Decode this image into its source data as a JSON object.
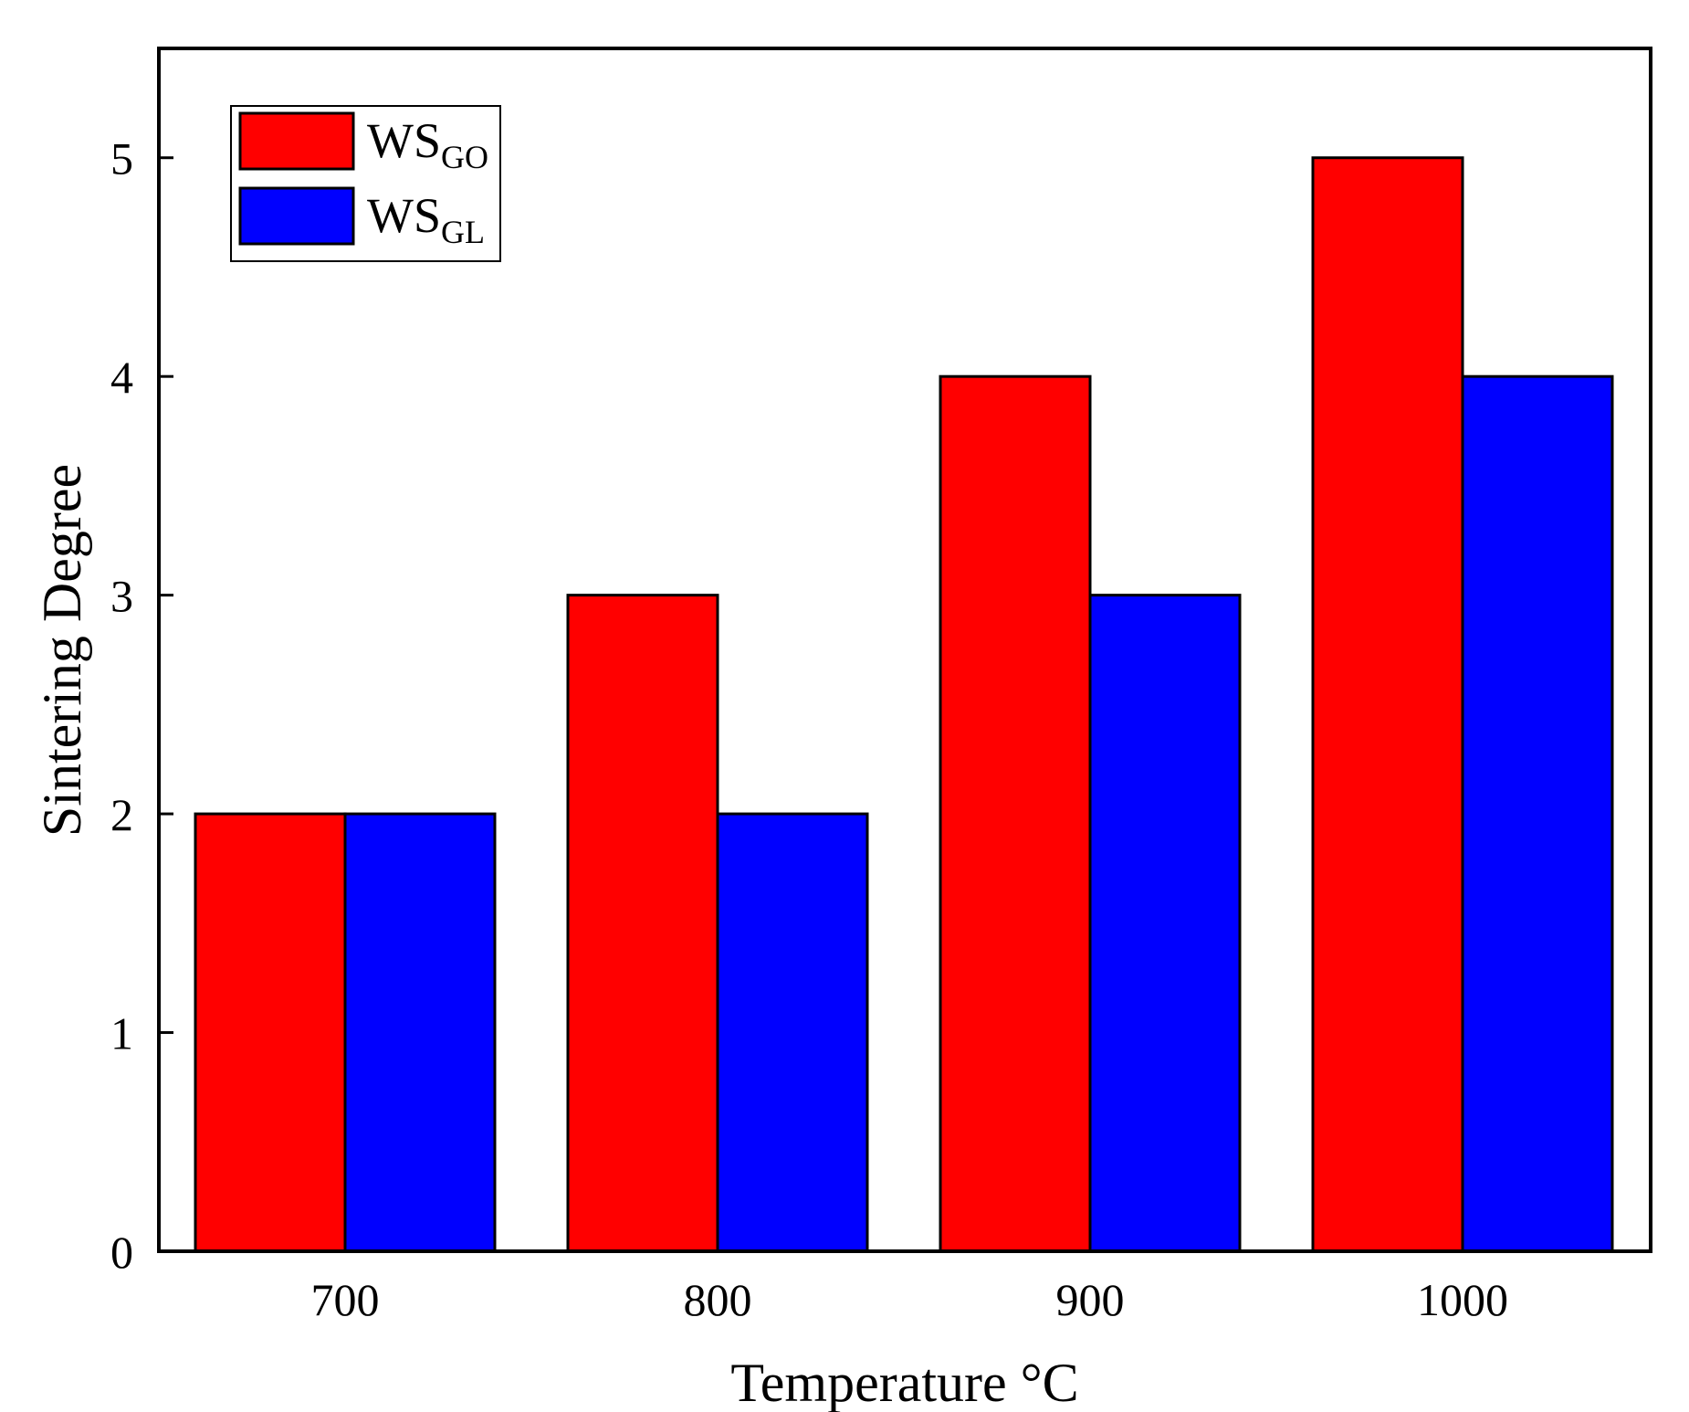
{
  "chart_data": {
    "type": "bar",
    "title": "",
    "xlabel": "Temperature °C",
    "ylabel": "Sintering Degree",
    "categories": [
      "700",
      "800",
      "900",
      "1000"
    ],
    "ylim": [
      0,
      5.5
    ],
    "yticks": [
      "0",
      "1",
      "2",
      "3",
      "4",
      "5"
    ],
    "legend_position": "top-left",
    "grid": false,
    "series": [
      {
        "name": "WS",
        "subscript": "GO",
        "color": "#ff0000",
        "values": [
          2,
          3,
          4,
          5
        ]
      },
      {
        "name": "WS",
        "subscript": "GL",
        "color": "#0000ff",
        "values": [
          2,
          2,
          3,
          4
        ]
      }
    ]
  }
}
